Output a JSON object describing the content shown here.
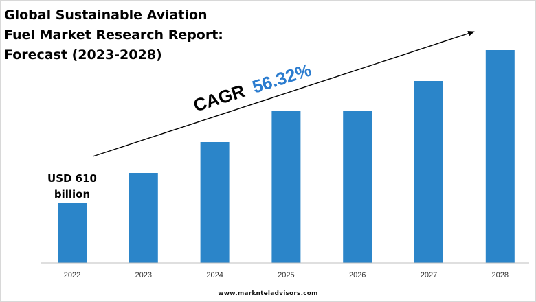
{
  "title_lines": [
    "Global Sustainable Aviation",
    "Fuel Market Research Report:",
    "Forecast (2023-2028)"
  ],
  "cagr": {
    "label": "CAGR",
    "value": "56.32%"
  },
  "start_annotation": {
    "line1": "USD 610",
    "line2": "billion"
  },
  "footer": "www.marknteladvisors.com",
  "colors": {
    "bar": "#2b85c9",
    "cagr_value": "#2b7ccf",
    "text": "#000000",
    "axis": "#bfbfbf"
  },
  "chart_data": {
    "type": "bar",
    "title": "Global Sustainable Aviation Fuel Market Research Report: Forecast (2023-2028)",
    "categories": [
      "2022",
      "2023",
      "2024",
      "2025",
      "2026",
      "2027",
      "2028"
    ],
    "values": [
      87,
      131,
      176,
      221,
      221,
      265,
      310
    ],
    "value_unit": "relative bar height (unlabeled axis)",
    "labeled_values": {
      "2022": "USD 610 billion"
    },
    "xlabel": "",
    "ylabel": "",
    "ylim": [
      0,
      345
    ],
    "grid": false,
    "legend": "none",
    "trend_annotation": "CAGR 56.32%"
  }
}
